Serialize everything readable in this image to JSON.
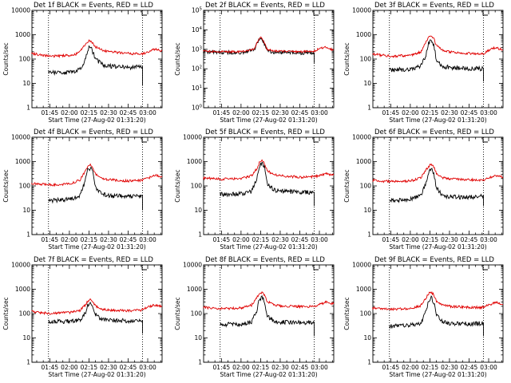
{
  "colors": {
    "events": "#000000",
    "lld": "#e00000",
    "background": "#ffffff"
  },
  "chart_data": {
    "type": "line",
    "xlabel": "Start Time (27-Aug-02 01:31:20)",
    "ylabel": "Counts/sec",
    "x_ticks": [
      "01:45",
      "02:00",
      "02:15",
      "02:30",
      "02:45",
      "03:00"
    ],
    "x_range": [
      "01:31:20",
      "03:11:00"
    ],
    "dotted_markers": [
      "01:44",
      "02:56"
    ],
    "log_y": true,
    "grid": false,
    "series_legend": "BLACK = Events, RED = LLD",
    "panels": [
      {
        "title": "Det 1f BLACK = Events, RED = LLD",
        "yticks": [
          "1",
          "10",
          "100",
          "1000",
          "10000"
        ],
        "ylim": [
          1,
          10000
        ],
        "series": [
          {
            "name": "Events",
            "color": "black",
            "x": [
              "01:44",
              "02:00",
              "02:05",
              "02:10",
              "02:13",
              "02:15",
              "02:17",
              "02:20",
              "02:25",
              "02:30",
              "02:45",
              "02:56"
            ],
            "y": [
              28,
              28,
              31,
              50,
              140,
              280,
              260,
              100,
              60,
              52,
              45,
              50
            ],
            "tail_drop": [
              50,
              8
            ]
          },
          {
            "name": "LLD",
            "color": "red",
            "x": [
              "01:31",
              "01:45",
              "02:00",
              "02:05",
              "02:10",
              "02:13",
              "02:15",
              "02:17",
              "02:20",
              "02:25",
              "02:30",
              "02:45",
              "02:55",
              "03:00",
              "03:05",
              "03:11"
            ],
            "y": [
              170,
              130,
              140,
              160,
              280,
              460,
              560,
              480,
              320,
              240,
              200,
              170,
              160,
              190,
              250,
              220
            ]
          }
        ]
      },
      {
        "title": "Det 2f BLACK = Events, RED = LLD",
        "yticks": [
          "10^0",
          "10^1",
          "10^2",
          "10^3",
          "10^4",
          "10^5"
        ],
        "ylim": [
          1,
          100000
        ],
        "series": [
          {
            "name": "Events",
            "color": "black",
            "x": [
              "01:31",
              "01:45",
              "02:00",
              "02:10",
              "02:13",
              "02:15",
              "02:17",
              "02:20",
              "02:25",
              "02:45",
              "02:56"
            ],
            "y": [
              750,
              700,
              680,
              900,
              2500,
              4000,
              2500,
              900,
              700,
              650,
              680
            ],
            "tail_drop": [
              680,
              200
            ]
          },
          {
            "name": "LLD",
            "color": "red",
            "x": [
              "01:31",
              "01:45",
              "02:00",
              "02:10",
              "02:13",
              "02:15",
              "02:17",
              "02:20",
              "02:25",
              "02:45",
              "02:56",
              "03:00",
              "03:05",
              "03:11"
            ],
            "y": [
              800,
              760,
              750,
              1000,
              2800,
              4200,
              2800,
              1000,
              800,
              760,
              780,
              1100,
              1300,
              900
            ]
          }
        ]
      },
      {
        "title": "Det 3f BLACK = Events, RED = LLD",
        "yticks": [
          "1",
          "10",
          "100",
          "1000",
          "10000"
        ],
        "ylim": [
          1,
          10000
        ],
        "series": [
          {
            "name": "Events",
            "color": "black",
            "x": [
              "01:44",
              "02:00",
              "02:08",
              "02:12",
              "02:14",
              "02:16",
              "02:18",
              "02:20",
              "02:25",
              "02:30",
              "02:45",
              "02:56"
            ],
            "y": [
              35,
              38,
              50,
              150,
              450,
              600,
              400,
              90,
              50,
              45,
              40,
              40
            ],
            "tail_drop": [
              40,
              12
            ]
          },
          {
            "name": "LLD",
            "color": "red",
            "x": [
              "01:31",
              "01:45",
              "02:00",
              "02:08",
              "02:12",
              "02:14",
              "02:16",
              "02:18",
              "02:20",
              "02:25",
              "02:30",
              "02:45",
              "02:55",
              "03:00",
              "03:05",
              "03:11"
            ],
            "y": [
              160,
              130,
              140,
              200,
              500,
              800,
              900,
              700,
              350,
              220,
              200,
              170,
              160,
              220,
              300,
              240
            ]
          }
        ]
      },
      {
        "title": "Det 4f BLACK = Events, RED = LLD",
        "yticks": [
          "1",
          "10",
          "100",
          "1000",
          "10000"
        ],
        "ylim": [
          1,
          10000
        ],
        "series": [
          {
            "name": "Events",
            "color": "black",
            "x": [
              "01:44",
              "02:00",
              "02:08",
              "02:12",
              "02:14",
              "02:16",
              "02:18",
              "02:20",
              "02:25",
              "02:30",
              "02:45",
              "02:56"
            ],
            "y": [
              25,
              28,
              40,
              150,
              450,
              550,
              380,
              90,
              45,
              40,
              38,
              40
            ],
            "tail_drop": [
              40,
              10
            ]
          },
          {
            "name": "LLD",
            "color": "red",
            "x": [
              "01:31",
              "01:45",
              "02:00",
              "02:08",
              "02:12",
              "02:14",
              "02:16",
              "02:18",
              "02:20",
              "02:25",
              "02:30",
              "02:45",
              "02:55",
              "03:00",
              "03:05",
              "03:11"
            ],
            "y": [
              130,
              110,
              120,
              170,
              400,
              650,
              750,
              600,
              300,
              200,
              180,
              160,
              170,
              200,
              280,
              230
            ]
          }
        ]
      },
      {
        "title": "Det 5f BLACK = Events, RED = LLD",
        "yticks": [
          "1",
          "10",
          "100",
          "1000",
          "10000"
        ],
        "ylim": [
          1,
          10000
        ],
        "series": [
          {
            "name": "Events",
            "color": "black",
            "x": [
              "01:44",
              "02:00",
              "02:08",
              "02:12",
              "02:14",
              "02:16",
              "02:18",
              "02:20",
              "02:25",
              "02:30",
              "02:45",
              "02:56"
            ],
            "y": [
              45,
              48,
              60,
              200,
              700,
              900,
              600,
              130,
              70,
              60,
              55,
              55
            ],
            "tail_drop": [
              55,
              15
            ]
          },
          {
            "name": "LLD",
            "color": "red",
            "x": [
              "01:31",
              "01:45",
              "02:00",
              "02:08",
              "02:12",
              "02:14",
              "02:16",
              "02:18",
              "02:20",
              "02:25",
              "02:30",
              "02:45",
              "02:55",
              "03:00",
              "03:05",
              "03:11"
            ],
            "y": [
              210,
              190,
              200,
              260,
              500,
              900,
              1100,
              850,
              420,
              300,
              260,
              230,
              240,
              260,
              320,
              280
            ]
          }
        ]
      },
      {
        "title": "Det 6f BLACK = Events, RED = LLD",
        "yticks": [
          "1",
          "10",
          "100",
          "1000",
          "10000"
        ],
        "ylim": [
          1,
          10000
        ],
        "series": [
          {
            "name": "Events",
            "color": "black",
            "x": [
              "01:44",
              "02:00",
              "02:08",
              "02:12",
              "02:14",
              "02:16",
              "02:18",
              "02:20",
              "02:25",
              "02:30",
              "02:45",
              "02:56"
            ],
            "y": [
              25,
              28,
              40,
              130,
              380,
              480,
              330,
              80,
              40,
              36,
              34,
              40
            ],
            "tail_drop": [
              40,
              15
            ]
          },
          {
            "name": "LLD",
            "color": "red",
            "x": [
              "01:31",
              "01:45",
              "02:00",
              "02:08",
              "02:12",
              "02:14",
              "02:16",
              "02:18",
              "02:20",
              "02:25",
              "02:30",
              "02:45",
              "02:55",
              "03:00",
              "03:05",
              "03:11"
            ],
            "y": [
              170,
              150,
              160,
              210,
              450,
              650,
              750,
              600,
              320,
              220,
              200,
              180,
              170,
              210,
              280,
              230
            ]
          }
        ]
      },
      {
        "title": "Det 7f BLACK = Events, RED = LLD",
        "yticks": [
          "1",
          "10",
          "100",
          "1000",
          "10000"
        ],
        "ylim": [
          1,
          10000
        ],
        "series": [
          {
            "name": "Events",
            "color": "black",
            "x": [
              "01:44",
              "02:00",
              "02:08",
              "02:12",
              "02:14",
              "02:16",
              "02:18",
              "02:20",
              "02:25",
              "02:30",
              "02:45",
              "02:56"
            ],
            "y": [
              45,
              48,
              55,
              100,
              220,
              280,
              200,
              90,
              60,
              55,
              50,
              50
            ],
            "tail_drop": [
              50,
              15
            ]
          },
          {
            "name": "LLD",
            "color": "red",
            "x": [
              "01:31",
              "01:45",
              "02:00",
              "02:08",
              "02:12",
              "02:14",
              "02:16",
              "02:18",
              "02:20",
              "02:25",
              "02:30",
              "02:45",
              "02:55",
              "03:00",
              "03:05",
              "03:11"
            ],
            "y": [
              120,
              100,
              110,
              130,
              220,
              320,
              360,
              300,
              200,
              150,
              140,
              130,
              140,
              180,
              230,
              200
            ]
          }
        ]
      },
      {
        "title": "Det 8f BLACK = Events, RED = LLD",
        "yticks": [
          "1",
          "10",
          "100",
          "1000",
          "10000"
        ],
        "ylim": [
          1,
          10000
        ],
        "series": [
          {
            "name": "Events",
            "color": "black",
            "x": [
              "01:44",
              "02:00",
              "02:08",
              "02:12",
              "02:14",
              "02:16",
              "02:18",
              "02:20",
              "02:25",
              "02:30",
              "02:45",
              "02:56"
            ],
            "y": [
              35,
              38,
              45,
              130,
              380,
              480,
              330,
              80,
              50,
              45,
              42,
              45
            ],
            "tail_drop": [
              45,
              12
            ]
          },
          {
            "name": "LLD",
            "color": "red",
            "x": [
              "01:31",
              "01:45",
              "02:00",
              "02:08",
              "02:12",
              "02:14",
              "02:16",
              "02:18",
              "02:20",
              "02:25",
              "02:30",
              "02:45",
              "02:55",
              "03:00",
              "03:05",
              "03:11"
            ],
            "y": [
              180,
              160,
              170,
              220,
              450,
              650,
              750,
              600,
              320,
              230,
              210,
              190,
              200,
              230,
              300,
              250
            ]
          }
        ]
      },
      {
        "title": "Det 9f BLACK = Events, RED = LLD",
        "yticks": [
          "1",
          "10",
          "100",
          "1000",
          "10000"
        ],
        "ylim": [
          1,
          10000
        ],
        "series": [
          {
            "name": "Events",
            "color": "black",
            "x": [
              "01:44",
              "02:00",
              "02:08",
              "02:12",
              "02:14",
              "02:16",
              "02:18",
              "02:20",
              "02:25",
              "02:30",
              "02:45",
              "02:56"
            ],
            "y": [
              30,
              33,
              40,
              120,
              350,
              450,
              300,
              80,
              45,
              40,
              38,
              40
            ],
            "tail_drop": [
              40,
              12
            ]
          },
          {
            "name": "LLD",
            "color": "red",
            "x": [
              "01:31",
              "01:45",
              "02:00",
              "02:08",
              "02:12",
              "02:14",
              "02:16",
              "02:18",
              "02:20",
              "02:25",
              "02:30",
              "02:45",
              "02:55",
              "03:00",
              "03:05",
              "03:11"
            ],
            "y": [
              170,
              150,
              160,
              210,
              430,
              650,
              750,
              600,
              320,
              220,
              200,
              180,
              180,
              220,
              290,
              240
            ]
          }
        ]
      }
    ]
  }
}
